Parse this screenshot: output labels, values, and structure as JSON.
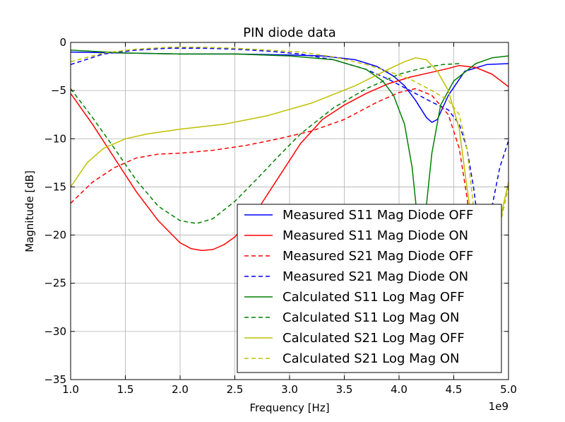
{
  "chart_data": {
    "type": "line",
    "title": "PIN diode data",
    "xlabel": "Frequency [Hz]",
    "ylabel": "Magnitude [dB]",
    "x_offset_label": "1e9",
    "xlim": [
      1.0,
      5.0
    ],
    "ylim": [
      -35,
      0
    ],
    "xticks": [
      "1.0",
      "1.5",
      "2.0",
      "2.5",
      "3.0",
      "3.5",
      "4.0",
      "4.5",
      "5.0"
    ],
    "yticks": [
      "0",
      "−5",
      "−10",
      "−15",
      "−20",
      "−25",
      "−30",
      "−35"
    ],
    "grid": true,
    "legend_position": "lower-right",
    "series": [
      {
        "name": "Measured S11 Mag Diode OFF",
        "color": "#0000ff",
        "dash": false,
        "x": [
          1.0,
          1.5,
          2.0,
          2.5,
          3.0,
          3.3,
          3.6,
          3.8,
          3.95,
          4.05,
          4.15,
          4.25,
          4.3,
          4.35,
          4.45,
          4.6,
          4.8,
          5.0
        ],
        "y": [
          -1.0,
          -1.1,
          -1.2,
          -1.2,
          -1.3,
          -1.4,
          -1.8,
          -2.5,
          -3.5,
          -4.5,
          -6.0,
          -7.8,
          -8.3,
          -8.0,
          -5.5,
          -3.0,
          -2.3,
          -2.2
        ]
      },
      {
        "name": "Measured S11 Mag Diode ON",
        "color": "#ff0000",
        "dash": false,
        "x": [
          1.0,
          1.2,
          1.4,
          1.6,
          1.8,
          2.0,
          2.1,
          2.2,
          2.3,
          2.4,
          2.5,
          2.7,
          2.9,
          3.1,
          3.3,
          3.5,
          3.7,
          3.9,
          4.1,
          4.3,
          4.45,
          4.55,
          4.7,
          4.85,
          5.0
        ],
        "y": [
          -5.3,
          -8.5,
          -12.0,
          -15.5,
          -18.5,
          -20.8,
          -21.4,
          -21.6,
          -21.5,
          -21.0,
          -20.2,
          -17.5,
          -14.0,
          -10.5,
          -8.0,
          -6.5,
          -5.3,
          -4.3,
          -3.6,
          -3.1,
          -2.7,
          -2.4,
          -2.6,
          -3.3,
          -4.6
        ]
      },
      {
        "name": "Measured S21 Mag Diode OFF",
        "color": "#ff0000",
        "dash": true,
        "x": [
          1.0,
          1.2,
          1.4,
          1.6,
          1.8,
          2.0,
          2.3,
          2.6,
          2.9,
          3.2,
          3.5,
          3.8,
          4.0,
          4.15,
          4.3,
          4.45,
          4.55,
          4.62,
          4.66,
          4.7,
          4.75
        ],
        "y": [
          -16.7,
          -14.5,
          -13.0,
          -12.0,
          -11.6,
          -11.5,
          -11.2,
          -10.7,
          -10.0,
          -9.2,
          -8.0,
          -6.2,
          -5.2,
          -4.8,
          -5.5,
          -7.5,
          -11.0,
          -16.0,
          -20.0,
          -26.0,
          -33.0
        ]
      },
      {
        "name": "Measured S21 Mag Diode ON",
        "color": "#0000ff",
        "dash": true,
        "x": [
          1.0,
          1.3,
          1.6,
          1.9,
          2.2,
          2.5,
          2.8,
          3.1,
          3.4,
          3.7,
          3.9,
          4.1,
          4.3,
          4.45,
          4.55,
          4.62,
          4.68,
          4.72,
          4.78,
          4.85,
          4.92,
          5.0
        ],
        "y": [
          -2.3,
          -1.2,
          -0.8,
          -0.6,
          -0.6,
          -0.7,
          -0.9,
          -1.2,
          -1.8,
          -2.8,
          -3.8,
          -5.0,
          -6.2,
          -7.0,
          -8.5,
          -11.0,
          -15.0,
          -18.5,
          -19.5,
          -17.0,
          -13.0,
          -10.2
        ]
      },
      {
        "name": "Calculated S11 Log Mag OFF",
        "color": "#008000",
        "dash": false,
        "x": [
          1.0,
          1.5,
          2.0,
          2.5,
          3.0,
          3.4,
          3.7,
          3.85,
          3.95,
          4.05,
          4.12,
          4.17,
          4.2,
          4.24,
          4.3,
          4.38,
          4.5,
          4.7,
          4.85,
          5.0
        ],
        "y": [
          -0.8,
          -1.1,
          -1.2,
          -1.2,
          -1.4,
          -1.8,
          -2.8,
          -4.0,
          -5.5,
          -8.5,
          -13.0,
          -18.5,
          -22.0,
          -18.0,
          -11.5,
          -6.5,
          -4.0,
          -2.2,
          -1.6,
          -1.4
        ]
      },
      {
        "name": "Calculated S11 Log Mag ON",
        "color": "#008000",
        "dash": true,
        "x": [
          1.0,
          1.2,
          1.4,
          1.6,
          1.8,
          2.0,
          2.15,
          2.3,
          2.5,
          2.7,
          2.9,
          3.1,
          3.4,
          3.7,
          4.0,
          4.2,
          4.4,
          4.55
        ],
        "y": [
          -4.8,
          -7.8,
          -11.0,
          -14.3,
          -17.0,
          -18.5,
          -18.8,
          -18.3,
          -16.5,
          -14.2,
          -11.8,
          -9.5,
          -6.8,
          -4.8,
          -3.3,
          -2.7,
          -2.3,
          -2.2
        ]
      },
      {
        "name": "Calculated S21 Log Mag OFF",
        "color": "#bfbf00",
        "dash": false,
        "x": [
          1.0,
          1.15,
          1.3,
          1.5,
          1.7,
          2.0,
          2.4,
          2.8,
          3.2,
          3.6,
          3.9,
          4.05,
          4.15,
          4.25,
          4.35,
          4.45,
          4.55,
          4.62,
          4.67,
          4.72,
          4.8,
          4.88,
          4.95,
          5.0
        ],
        "y": [
          -15.0,
          -12.5,
          -11.0,
          -10.0,
          -9.5,
          -9.0,
          -8.5,
          -7.6,
          -6.3,
          -4.5,
          -2.8,
          -2.0,
          -1.6,
          -1.8,
          -3.0,
          -5.0,
          -9.0,
          -15.0,
          -19.0,
          -22.5,
          -24.0,
          -21.0,
          -17.0,
          -14.5
        ]
      },
      {
        "name": "Calculated S21 Log Mag ON",
        "color": "#bfbf00",
        "dash": true,
        "x": [
          1.0,
          1.3,
          1.6,
          1.9,
          2.2,
          2.5,
          2.8,
          3.1,
          3.4,
          3.7,
          3.9,
          4.1,
          4.3,
          4.45,
          4.55,
          4.62,
          4.67,
          4.72,
          4.78,
          4.85,
          4.92,
          5.0
        ],
        "y": [
          -2.0,
          -1.1,
          -0.7,
          -0.5,
          -0.5,
          -0.6,
          -0.8,
          -1.0,
          -1.5,
          -2.3,
          -3.0,
          -3.8,
          -5.0,
          -6.0,
          -7.5,
          -11.0,
          -16.0,
          -22.0,
          -26.0,
          -24.0,
          -19.0,
          -15.0
        ]
      }
    ]
  }
}
